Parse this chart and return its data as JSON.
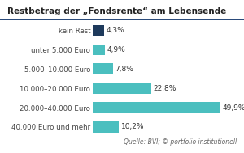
{
  "title": "Restbetrag der „Fondsrente“ am Lebensende",
  "categories": [
    "40.000 Euro und mehr",
    "20.000–40.000 Euro",
    "10.000–20.000 Euro",
    "5.000–10.000 Euro",
    "unter 5.000 Euro",
    "kein Rest"
  ],
  "values": [
    10.2,
    49.9,
    22.8,
    7.8,
    4.9,
    4.3
  ],
  "bar_colors": [
    "#4bbfbf",
    "#4bbfbf",
    "#4bbfbf",
    "#4bbfbf",
    "#4bbfbf",
    "#1e3a5c"
  ],
  "label_texts": [
    "10,2%",
    "49,9%",
    "22,8%",
    "7,8%",
    "4,9%",
    "4,3%"
  ],
  "source": "Quelle: BVI; © portfolio institutionell",
  "bg_color": "#ffffff",
  "title_bg_color": "#ffffff",
  "title_fontsize": 7.5,
  "label_fontsize": 6.5,
  "tick_fontsize": 6.2,
  "source_fontsize": 5.5,
  "title_color": "#222222",
  "tick_color": "#444444",
  "label_color": "#333333",
  "source_color": "#666666",
  "border_color": "#2a4a7a",
  "xlim": [
    0,
    58
  ]
}
